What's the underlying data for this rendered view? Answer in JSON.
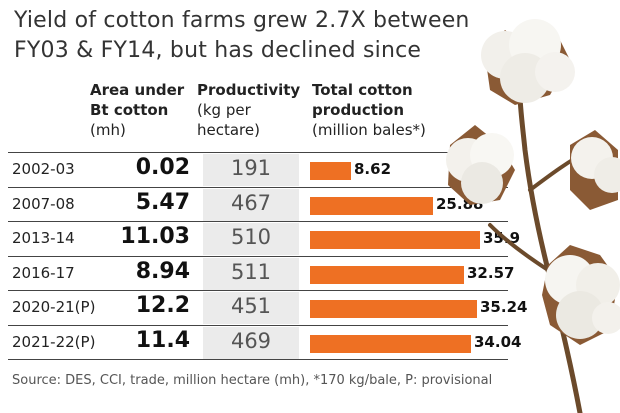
{
  "chart_data": {
    "type": "table",
    "title": "Yield of cotton farms grew 2.7X between FY03 & FY14, but has declined since",
    "columns": [
      {
        "bold": "Area under Bt cotton",
        "note": "(mh)"
      },
      {
        "bold": "Productivity",
        "note": "(kg per hectare)"
      },
      {
        "bold": "Total cotton production",
        "note": "(million bales*)"
      }
    ],
    "rows": [
      {
        "year": "2002-03",
        "area": "0.02",
        "productivity": "191",
        "production": 8.62,
        "production_label": "8.62"
      },
      {
        "year": "2007-08",
        "area": "5.47",
        "productivity": "467",
        "production": 25.88,
        "production_label": "25.88"
      },
      {
        "year": "2013-14",
        "area": "11.03",
        "productivity": "510",
        "production": 35.9,
        "production_label": "35.9"
      },
      {
        "year": "2016-17",
        "area": "8.94",
        "productivity": "511",
        "production": 32.57,
        "production_label": "32.57"
      },
      {
        "year": "2020-21(P)",
        "area": "12.2",
        "productivity": "451",
        "production": 35.24,
        "production_label": "35.24"
      },
      {
        "year": "2021-22(P)",
        "area": "11.4",
        "productivity": "469",
        "production": 34.04,
        "production_label": "34.04"
      }
    ],
    "bar_color": "#ee7023",
    "source": "Source: DES, CCI, trade, million hectare (mh), *170 kg/bale, P: provisional"
  },
  "title_line1": "Yield of cotton farms grew 2.7X between",
  "title_line2": "FY03 & FY14, but has declined since",
  "hdr": {
    "area_l1": "Area under",
    "area_l2": "Bt cotton",
    "area_l3": "(mh)",
    "prod_l1": "Productivity",
    "prod_l2": "(kg per",
    "prod_l3": "hectare)",
    "tot_l1": "Total cotton",
    "tot_l2": "production",
    "tot_l3": "(million bales*)"
  },
  "decoration": "cotton-plant-illustration"
}
